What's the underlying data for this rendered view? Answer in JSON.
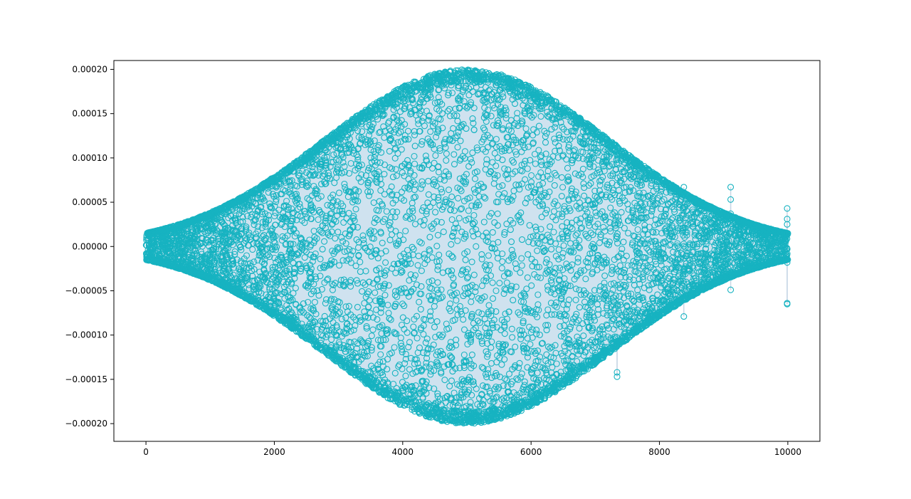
{
  "chart_data": {
    "type": "scatter",
    "title": "",
    "xlabel": "",
    "ylabel": "",
    "xlim": [
      -500,
      10500
    ],
    "ylim": [
      -0.00022,
      0.00021
    ],
    "grid": false,
    "legend": "none",
    "x_ticks": [
      {
        "value": 0,
        "label": "0"
      },
      {
        "value": 2000,
        "label": "2000"
      },
      {
        "value": 4000,
        "label": "4000"
      },
      {
        "value": 6000,
        "label": "6000"
      },
      {
        "value": 8000,
        "label": "8000"
      },
      {
        "value": 10000,
        "label": "10000"
      }
    ],
    "y_ticks": [
      {
        "value": 0.0002,
        "label": "0.00020"
      },
      {
        "value": 0.00015,
        "label": "0.00015"
      },
      {
        "value": 0.0001,
        "label": "0.00010"
      },
      {
        "value": 5e-05,
        "label": "0.00005"
      },
      {
        "value": 0,
        "label": "0.00000"
      },
      {
        "value": -5e-05,
        "label": "−0.00005"
      },
      {
        "value": -0.0001,
        "label": "−0.00010"
      },
      {
        "value": -0.00015,
        "label": "−0.00015"
      },
      {
        "value": -0.0002,
        "label": "−0.00020"
      }
    ],
    "series": [
      {
        "x_start": 0,
        "x_end": 10000,
        "n_points": 10000,
        "envelope_peak": 0.0002,
        "envelope_center": 5000,
        "marker": "open-circle",
        "marker_color": "#17b3c1",
        "fill_color": "#cfe2ef",
        "outliers": [
          {
            "x": 7340,
            "y": -0.000142
          },
          {
            "x": 7340,
            "y": -0.000147
          },
          {
            "x": 8380,
            "y": 6.7e-05
          },
          {
            "x": 8380,
            "y": 6.1e-05
          },
          {
            "x": 8380,
            "y": -7.9e-05
          },
          {
            "x": 9110,
            "y": 6.7e-05
          },
          {
            "x": 9110,
            "y": 5.3e-05
          },
          {
            "x": 9110,
            "y": 3.7e-05
          },
          {
            "x": 9110,
            "y": -2.4e-05
          },
          {
            "x": 9110,
            "y": -4.9e-05
          },
          {
            "x": 9990,
            "y": 4.3e-05
          },
          {
            "x": 9990,
            "y": 3.1e-05
          },
          {
            "x": 9990,
            "y": 2.5e-05
          },
          {
            "x": 9990,
            "y": 1.3e-05
          },
          {
            "x": 9990,
            "y": -1.8e-05
          },
          {
            "x": 9990,
            "y": -6.4e-05
          },
          {
            "x": 9990,
            "y": -6.5e-05
          }
        ]
      }
    ]
  }
}
